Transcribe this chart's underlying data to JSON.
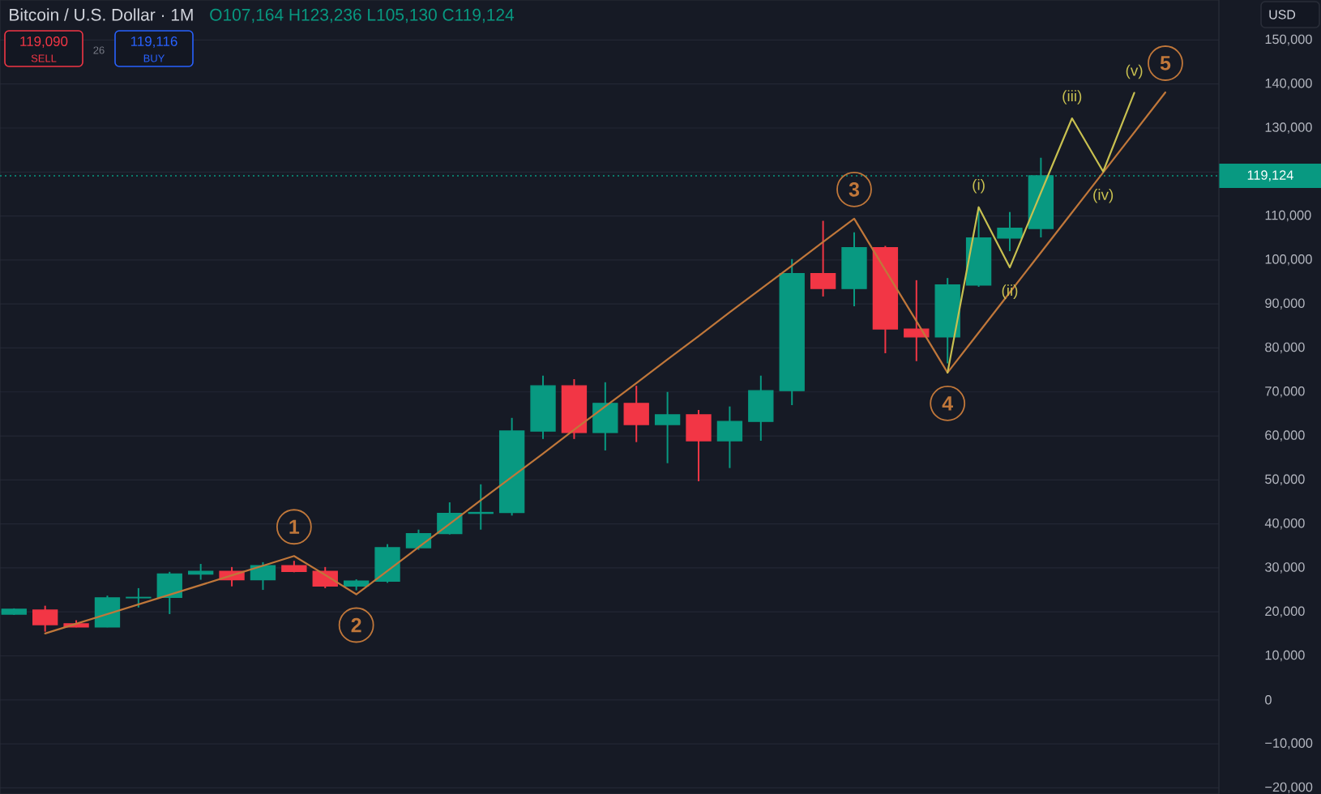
{
  "chart_data": {
    "type": "candlestick",
    "title": "Bitcoin / U.S. Dollar · 1M",
    "subtitle": "O107,164 H123,236 L105,130 C119,124",
    "categories": [
      null,
      null,
      null,
      null,
      null,
      null,
      null,
      null,
      null,
      null,
      null,
      null,
      null,
      null,
      null,
      null,
      null,
      null,
      null,
      null,
      null,
      null,
      null,
      null,
      null,
      null,
      null,
      null,
      null,
      null,
      null,
      null,
      null,
      null,
      null,
      null,
      null,
      null
    ],
    "ohlc": [
      [
        19500,
        20800,
        19300,
        20600
      ],
      [
        20400,
        21400,
        15500,
        17100
      ],
      [
        17300,
        18100,
        16500,
        16600
      ],
      [
        16600,
        23700,
        16500,
        23200
      ],
      [
        23200,
        25400,
        21000,
        23300
      ],
      [
        23300,
        29100,
        19500,
        28600
      ],
      [
        28600,
        30900,
        27300,
        29200
      ],
      [
        29200,
        30200,
        25800,
        27300
      ],
      [
        27300,
        31300,
        25000,
        30500
      ],
      [
        30500,
        31600,
        29000,
        29200
      ],
      [
        29200,
        30200,
        25400,
        25900
      ],
      [
        25900,
        27400,
        24900,
        27000
      ],
      [
        27000,
        35400,
        26600,
        34600
      ],
      [
        34600,
        38700,
        34100,
        37800
      ],
      [
        37800,
        44900,
        37600,
        42400
      ],
      [
        42400,
        49000,
        38700,
        42600
      ],
      [
        42600,
        64100,
        41900,
        61100
      ],
      [
        61100,
        73700,
        59300,
        71400
      ],
      [
        71400,
        72900,
        59300,
        60800
      ],
      [
        60800,
        72200,
        56700,
        67400
      ],
      [
        67400,
        71400,
        58600,
        62600
      ],
      [
        62600,
        70000,
        53800,
        64800
      ],
      [
        64800,
        65900,
        49700,
        58900
      ],
      [
        58900,
        66700,
        52700,
        63300
      ],
      [
        63300,
        73700,
        58900,
        70300
      ],
      [
        70300,
        100200,
        67000,
        96900
      ],
      [
        96900,
        108900,
        91700,
        93500
      ],
      [
        93500,
        106300,
        89500,
        102800
      ],
      [
        102800,
        103200,
        78800,
        84300
      ],
      [
        84300,
        95400,
        77000,
        82500
      ],
      [
        82500,
        95900,
        76500,
        94300
      ],
      [
        94300,
        112000,
        93900,
        105000
      ],
      [
        105000,
        110900,
        102000,
        107200
      ],
      [
        107164,
        123236,
        105130,
        119124
      ],
      null,
      null,
      null,
      null
    ],
    "colors": [
      "#089981",
      "#f23645",
      "#f23645",
      "#089981",
      "#089981",
      "#089981",
      "#089981",
      "#f23645",
      "#089981",
      "#f23645",
      "#f23645",
      "#089981",
      "#089981",
      "#089981",
      "#089981",
      "#089981",
      "#089981",
      "#089981",
      "#f23645",
      "#089981",
      "#f23645",
      "#089981",
      "#f23645",
      "#089981",
      "#089981",
      "#089981",
      "#f23645",
      "#089981",
      "#f23645",
      "#f23645",
      "#089981",
      "#089981",
      "#089981",
      "#089981",
      null,
      null,
      null,
      null
    ],
    "series": [
      {
        "type": "line",
        "color": "#c0773a",
        "values": [
          null,
          15100,
          17300,
          19500,
          21700,
          23900,
          26100,
          28300,
          30500,
          32700,
          28400,
          24000,
          29300,
          34700,
          40000,
          45400,
          50700,
          56000,
          61400,
          66700,
          72000,
          77400,
          82700,
          88100,
          93400,
          98700,
          104100,
          109400,
          97700,
          86100,
          74400,
          83500,
          92600,
          101700,
          110800,
          119900,
          129000,
          138100
        ]
      },
      {
        "type": "line",
        "color": "#c8c050",
        "values": [
          null,
          null,
          null,
          null,
          null,
          null,
          null,
          null,
          null,
          null,
          null,
          null,
          null,
          null,
          null,
          null,
          null,
          null,
          null,
          null,
          null,
          null,
          null,
          null,
          null,
          null,
          null,
          null,
          null,
          null,
          74400,
          112000,
          98300,
          115300,
          132200,
          120100,
          138000,
          null
        ]
      }
    ],
    "ylim": [
      -21400,
      159100
    ],
    "yticks": [
      {
        "value": -20000,
        "label": "−20,000"
      },
      {
        "value": -10000,
        "label": "−10,000"
      },
      0,
      {
        "value": 10000,
        "label": "10,000"
      },
      {
        "value": 20000,
        "label": "20,000"
      },
      {
        "value": 30000,
        "label": "30,000"
      },
      {
        "value": 40000,
        "label": "40,000"
      },
      {
        "value": 50000,
        "label": "50,000"
      },
      {
        "value": 60000,
        "label": "60,000"
      },
      {
        "value": 70000,
        "label": "70,000"
      },
      {
        "value": 80000,
        "label": "80,000"
      },
      {
        "value": 90000,
        "label": "90,000"
      },
      {
        "value": 100000,
        "label": "100,000"
      },
      {
        "value": 110000,
        "label": "110,000"
      },
      {
        "value": 120000,
        "label": null
      },
      {
        "value": 130000,
        "label": "130,000"
      },
      {
        "value": 140000,
        "label": "140,000"
      },
      {
        "value": 150000,
        "label": "150,000"
      }
    ],
    "ref_lines": [
      {
        "axis": "y",
        "value": 119124,
        "label": "119,124",
        "color": "#089981",
        "line_style": "dotted"
      }
    ],
    "grid": true,
    "tick_labels": "y",
    "annotations": [
      "119,090",
      "SELL",
      "26",
      "119,116",
      "BUY",
      "USD",
      {
        "text": "1",
        "y": 32700
      },
      {
        "text": "2",
        "y": 24000
      },
      {
        "text": "3",
        "y": 109400
      },
      {
        "text": "4",
        "y": 74400
      },
      {
        "text": "5",
        "y": 138100
      },
      {
        "text": "(i)",
        "y": 112000
      },
      {
        "text": "(ii)",
        "y": 98300
      },
      {
        "text": "(iii)",
        "y": 132200
      },
      {
        "text": "(iv)",
        "y": 120100
      },
      {
        "text": "(v)",
        "y": 138000
      }
    ]
  }
}
